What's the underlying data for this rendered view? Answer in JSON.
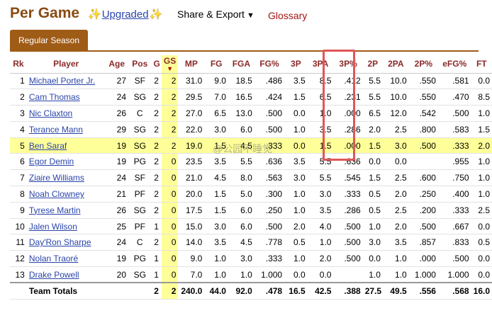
{
  "header": {
    "title": "Per Game",
    "upgraded_label": "Upgraded",
    "share_label": "Share & Export",
    "glossary_label": "Glossary"
  },
  "tabs": [
    {
      "label": "Regular Season"
    }
  ],
  "table": {
    "columns": [
      "Rk",
      "Player",
      "Age",
      "Pos",
      "G",
      "GS",
      "MP",
      "FG",
      "FGA",
      "FG%",
      "3P",
      "3PA",
      "3P%",
      "2P",
      "2PA",
      "2P%",
      "eFG%",
      "FT"
    ],
    "sorted_column": "GS",
    "rows": [
      [
        "1",
        "Michael Porter Jr.",
        "27",
        "SF",
        "2",
        "2",
        "31.0",
        "9.0",
        "18.5",
        ".486",
        "3.5",
        "8.5",
        ".412",
        "5.5",
        "10.0",
        ".550",
        ".581",
        "0.0"
      ],
      [
        "2",
        "Cam Thomas",
        "24",
        "SG",
        "2",
        "2",
        "29.5",
        "7.0",
        "16.5",
        ".424",
        "1.5",
        "6.5",
        ".231",
        "5.5",
        "10.0",
        ".550",
        ".470",
        "8.5"
      ],
      [
        "3",
        "Nic Claxton",
        "26",
        "C",
        "2",
        "2",
        "27.0",
        "6.5",
        "13.0",
        ".500",
        "0.0",
        "1.0",
        ".000",
        "6.5",
        "12.0",
        ".542",
        ".500",
        "1.0"
      ],
      [
        "4",
        "Terance Mann",
        "29",
        "SG",
        "2",
        "2",
        "22.0",
        "3.0",
        "6.0",
        ".500",
        "1.0",
        "3.5",
        ".286",
        "2.0",
        "2.5",
        ".800",
        ".583",
        "1.5"
      ],
      [
        "5",
        "Ben Saraf",
        "19",
        "SG",
        "2",
        "2",
        "19.0",
        "1.5",
        "4.5",
        ".333",
        "0.0",
        "1.5",
        ".000",
        "1.5",
        "3.0",
        ".500",
        ".333",
        "2.0"
      ],
      [
        "6",
        "Egor Demin",
        "19",
        "PG",
        "2",
        "0",
        "23.5",
        "3.5",
        "5.5",
        ".636",
        "3.5",
        "5.5",
        ".636",
        "0.0",
        "0.0",
        "",
        ".955",
        "1.0"
      ],
      [
        "7",
        "Ziaire Williams",
        "24",
        "SF",
        "2",
        "0",
        "21.0",
        "4.5",
        "8.0",
        ".563",
        "3.0",
        "5.5",
        ".545",
        "1.5",
        "2.5",
        ".600",
        ".750",
        "1.0"
      ],
      [
        "8",
        "Noah Clowney",
        "21",
        "PF",
        "2",
        "0",
        "20.0",
        "1.5",
        "5.0",
        ".300",
        "1.0",
        "3.0",
        ".333",
        "0.5",
        "2.0",
        ".250",
        ".400",
        "1.0"
      ],
      [
        "9",
        "Tyrese Martin",
        "26",
        "SG",
        "2",
        "0",
        "17.5",
        "1.5",
        "6.0",
        ".250",
        "1.0",
        "3.5",
        ".286",
        "0.5",
        "2.5",
        ".200",
        ".333",
        "2.5"
      ],
      [
        "10",
        "Jalen Wilson",
        "25",
        "PF",
        "1",
        "0",
        "15.0",
        "3.0",
        "6.0",
        ".500",
        "2.0",
        "4.0",
        ".500",
        "1.0",
        "2.0",
        ".500",
        ".667",
        "0.0"
      ],
      [
        "11",
        "Day'Ron Sharpe",
        "24",
        "C",
        "2",
        "0",
        "14.0",
        "3.5",
        "4.5",
        ".778",
        "0.5",
        "1.0",
        ".500",
        "3.0",
        "3.5",
        ".857",
        ".833",
        "0.5"
      ],
      [
        "12",
        "Nolan Traoré",
        "19",
        "PG",
        "1",
        "0",
        "9.0",
        "1.0",
        "3.0",
        ".333",
        "1.0",
        "2.0",
        ".500",
        "0.0",
        "1.0",
        ".000",
        ".500",
        "0.0"
      ],
      [
        "13",
        "Drake Powell",
        "20",
        "SG",
        "1",
        "0",
        "7.0",
        "1.0",
        "1.0",
        "1.000",
        "0.0",
        "0.0",
        "",
        "1.0",
        "1.0",
        "1.000",
        "1.000",
        "0.0"
      ]
    ],
    "totals": [
      "",
      "Team Totals",
      "",
      "",
      "2",
      "2",
      "240.0",
      "44.0",
      "92.0",
      ".478",
      "16.5",
      "42.5",
      ".388",
      "27.5",
      "49.5",
      ".556",
      ".568",
      "16.0"
    ]
  },
  "watermark": "@公园不睡觉",
  "colors": {
    "title": "#8a4b12",
    "tab_bg": "#9f5c17",
    "highlight": "#ffff99",
    "header_text": "#8a2a2a",
    "annotation_box": "#e05656",
    "link": "#2b45a8"
  }
}
